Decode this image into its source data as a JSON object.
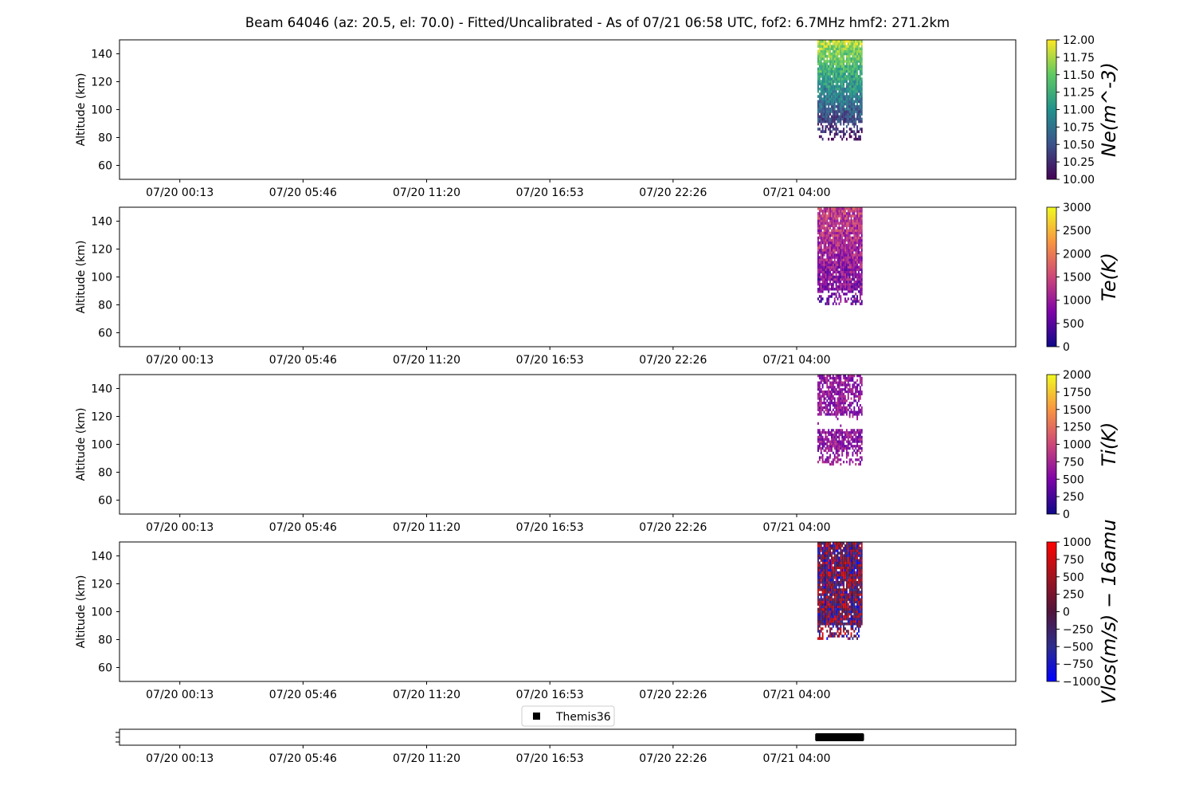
{
  "title": "Beam 64046 (az: 20.5, el: 70.0) - Fitted/Uncalibrated - As of 07/21 06:58 UTC, fof2: 6.7MHz  hmf2: 271.2km",
  "chart_data": [
    {
      "type": "heatmap",
      "id": "ne",
      "ylabel": "Altitude (km)",
      "colorbar_label": "Ne(m^-3)",
      "colormap": "viridis",
      "ylim": [
        50,
        150
      ],
      "yticks": [
        60,
        80,
        100,
        120,
        140
      ],
      "xticks": [
        "07/20 00:13",
        "07/20 05:46",
        "07/20 11:20",
        "07/20 16:53",
        "07/20 22:26",
        "07/21 04:00"
      ],
      "xlim": [
        "07/19 21:30",
        "07/21 13:52"
      ],
      "data_time_range": [
        "07/21 04:56",
        "07/21 06:58"
      ],
      "data_altitude_range": [
        78,
        150
      ],
      "value_range": [
        10,
        12
      ],
      "cbar_ticks": [
        "12.00",
        "11.75",
        "11.50",
        "11.25",
        "11.00",
        "10.75",
        "10.50",
        "10.25",
        "10.00"
      ]
    },
    {
      "type": "heatmap",
      "id": "te",
      "ylabel": "Altitude (km)",
      "colorbar_label": "Te(K)",
      "colormap": "plasma",
      "ylim": [
        50,
        150
      ],
      "yticks": [
        60,
        80,
        100,
        120,
        140
      ],
      "xticks": [
        "07/20 00:13",
        "07/20 05:46",
        "07/20 11:20",
        "07/20 16:53",
        "07/20 22:26",
        "07/21 04:00"
      ],
      "xlim": [
        "07/19 21:30",
        "07/21 13:52"
      ],
      "data_time_range": [
        "07/21 04:56",
        "07/21 06:58"
      ],
      "data_altitude_range": [
        80,
        150
      ],
      "value_range": [
        0,
        3000
      ],
      "cbar_ticks": [
        "3000",
        "2500",
        "2000",
        "1500",
        "1000",
        "500",
        "0"
      ]
    },
    {
      "type": "heatmap",
      "id": "ti",
      "ylabel": "Altitude (km)",
      "colorbar_label": "Ti(K)",
      "colormap": "plasma",
      "ylim": [
        50,
        150
      ],
      "yticks": [
        60,
        80,
        100,
        120,
        140
      ],
      "xticks": [
        "07/20 00:13",
        "07/20 05:46",
        "07/20 11:20",
        "07/20 16:53",
        "07/20 22:26",
        "07/21 04:00"
      ],
      "xlim": [
        "07/19 21:30",
        "07/21 13:52"
      ],
      "data_time_range": [
        "07/21 04:56",
        "07/21 06:58"
      ],
      "data_altitude_range": [
        85,
        150
      ],
      "value_range": [
        0,
        2000
      ],
      "cbar_ticks": [
        "2000",
        "1750",
        "1500",
        "1250",
        "1000",
        "750",
        "500",
        "250",
        "0"
      ]
    },
    {
      "type": "heatmap",
      "id": "vlos",
      "ylabel": "Altitude (km)",
      "colorbar_label": "Vlos(m/s) − 16amu",
      "colormap": "bwr",
      "ylim": [
        50,
        150
      ],
      "yticks": [
        60,
        80,
        100,
        120,
        140
      ],
      "xticks": [
        "07/20 00:13",
        "07/20 05:46",
        "07/20 11:20",
        "07/20 16:53",
        "07/20 22:26",
        "07/21 04:00"
      ],
      "xlim": [
        "07/19 21:30",
        "07/21 13:52"
      ],
      "data_time_range": [
        "07/21 04:56",
        "07/21 06:58"
      ],
      "data_altitude_range": [
        80,
        150
      ],
      "value_range": [
        -1000,
        1000
      ],
      "cbar_ticks": [
        "1000",
        "750",
        "500",
        "250",
        "0",
        "−250",
        "−500",
        "−750",
        "−1000"
      ]
    },
    {
      "type": "scatter",
      "id": "modes",
      "legend": "Themis36",
      "legend_position": "top-center",
      "xticks": [
        "07/20 00:13",
        "07/20 05:46",
        "07/20 11:20",
        "07/20 16:53",
        "07/20 22:26",
        "07/21 04:00"
      ],
      "xlim": [
        "07/19 21:30",
        "07/21 13:52"
      ],
      "data_time_range": [
        "07/21 04:50",
        "07/21 07:02"
      ]
    }
  ]
}
